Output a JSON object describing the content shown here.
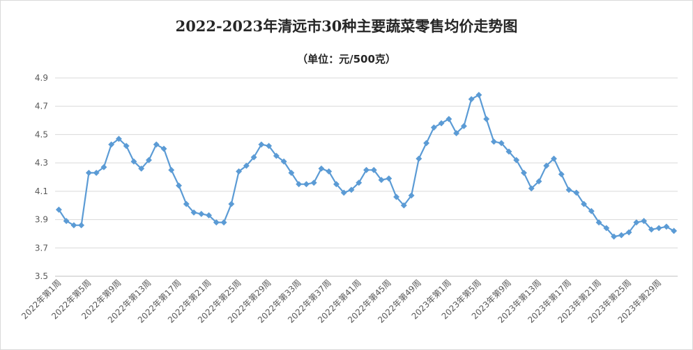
{
  "chart_data": {
    "type": "line",
    "title": "2022-2023年清远市30种主要蔬菜零售均价走势图",
    "subtitle": "（单位：元/500克）",
    "xlabel": "",
    "ylabel": "",
    "ylim": [
      3.5,
      4.9
    ],
    "yticks": [
      "3.5",
      "3.7",
      "3.9",
      "4.1",
      "4.3",
      "4.5",
      "4.7",
      "4.9"
    ],
    "grid": true,
    "legend": "none",
    "color": "#5b9bd5",
    "categories": [
      "2022年第1周",
      "2022年第2周",
      "2022年第3周",
      "2022年第4周",
      "2022年第5周",
      "2022年第6周",
      "2022年第7周",
      "2022年第8周",
      "2022年第9周",
      "2022年第10周",
      "2022年第11周",
      "2022年第12周",
      "2022年第13周",
      "2022年第14周",
      "2022年第15周",
      "2022年第16周",
      "2022年第17周",
      "2022年第18周",
      "2022年第19周",
      "2022年第20周",
      "2022年第21周",
      "2022年第22周",
      "2022年第23周",
      "2022年第24周",
      "2022年第25周",
      "2022年第26周",
      "2022年第27周",
      "2022年第28周",
      "2022年第29周",
      "2022年第30周",
      "2022年第31周",
      "2022年第32周",
      "2022年第33周",
      "2022年第34周",
      "2022年第35周",
      "2022年第36周",
      "2022年第37周",
      "2022年第38周",
      "2022年第39周",
      "2022年第40周",
      "2022年第41周",
      "2022年第42周",
      "2022年第43周",
      "2022年第44周",
      "2022年第45周",
      "2022年第46周",
      "2022年第47周",
      "2022年第48周",
      "2022年第49周",
      "2022年第50周",
      "2022年第51周",
      "2022年第52周",
      "2023年第1周",
      "2023年第2周",
      "2023年第3周",
      "2023年第4周",
      "2023年第5周",
      "2023年第6周",
      "2023年第7周",
      "2023年第8周",
      "2023年第9周",
      "2023年第10周",
      "2023年第11周",
      "2023年第12周",
      "2023年第13周",
      "2023年第14周",
      "2023年第15周",
      "2023年第16周",
      "2023年第17周",
      "2023年第18周",
      "2023年第19周",
      "2023年第20周",
      "2023年第21周",
      "2023年第22周",
      "2023年第23周",
      "2023年第24周",
      "2023年第25周",
      "2023年第26周",
      "2023年第27周",
      "2023年第28周",
      "2023年第29周",
      "2023年第30周",
      "2023年第31周"
    ],
    "series": [
      {
        "values": [
          3.97,
          3.89,
          3.86,
          3.86,
          4.23,
          4.23,
          4.27,
          4.43,
          4.47,
          4.42,
          4.31,
          4.26,
          4.32,
          4.43,
          4.4,
          4.25,
          4.14,
          4.01,
          3.95,
          3.94,
          3.93,
          3.88,
          3.88,
          4.01,
          4.24,
          4.28,
          4.34,
          4.43,
          4.42,
          4.35,
          4.31,
          4.23,
          4.15,
          4.15,
          4.16,
          4.26,
          4.24,
          4.15,
          4.09,
          4.11,
          4.16,
          4.25,
          4.25,
          4.18,
          4.19,
          4.06,
          4.0,
          4.07,
          4.33,
          4.44,
          4.55,
          4.58,
          4.61,
          4.51,
          4.56,
          4.75,
          4.78,
          4.61,
          4.45,
          4.44,
          4.38,
          4.32,
          4.23,
          4.12,
          4.17,
          4.28,
          4.33,
          4.22,
          4.11,
          4.09,
          4.01,
          3.96,
          3.88,
          3.84,
          3.78,
          3.79,
          3.81,
          3.88,
          3.89,
          3.83,
          3.84,
          3.85,
          3.82
        ]
      }
    ],
    "label_every": 4
  }
}
